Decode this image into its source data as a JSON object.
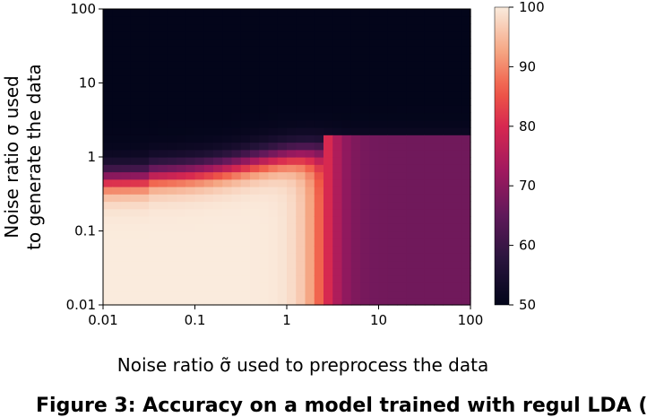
{
  "chart_data": {
    "type": "heatmap",
    "title": "",
    "xlabel": "Noise ratio σ̃ used to preprocess the data",
    "ylabel_lines": [
      "Noise ratio σ used",
      "to generate the data"
    ],
    "x_scale": "log",
    "y_scale": "log",
    "xlim": [
      0.01,
      100
    ],
    "ylim": [
      0.01,
      100
    ],
    "x_tick_labels": [
      "0.01",
      "0.1",
      "1",
      "10",
      "100"
    ],
    "y_tick_labels": [
      "0.01",
      "0.1",
      "1",
      "10",
      "100"
    ],
    "x_tick_values": [
      0.01,
      0.1,
      1,
      10,
      100
    ],
    "y_tick_values": [
      0.01,
      0.1,
      1,
      10,
      100
    ],
    "grid_resolution": 40,
    "colorbar": {
      "range": [
        50,
        100
      ],
      "tick_labels": [
        "50",
        "60",
        "70",
        "80",
        "90",
        "100"
      ],
      "tick_values": [
        50,
        60,
        70,
        80,
        90,
        100
      ],
      "colormap": "rocket"
    },
    "value_model": {
      "description": "accuracy (%) over log10(sigma_tilde) x log10(sigma)",
      "low_noise_plateau": 100,
      "high_sigma_floor": 50,
      "high_sigma_tilde_level": 67
    }
  },
  "caption": {
    "text": "Figure 3: Accuracy on a model trained with regul LDA ("
  }
}
